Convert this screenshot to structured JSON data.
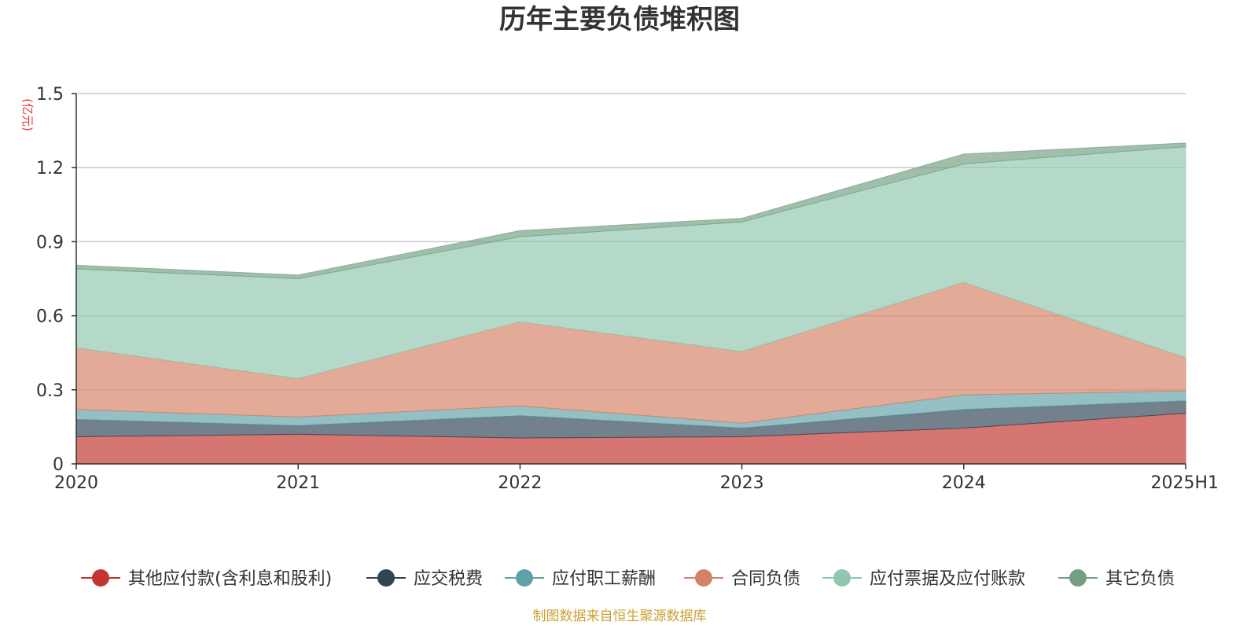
{
  "chart_data": {
    "type": "area",
    "stacked": true,
    "title": "历年主要负债堆积图",
    "y_unit": "(亿元)",
    "categories": [
      "2020",
      "2021",
      "2022",
      "2023",
      "2024",
      "2025H1"
    ],
    "ylim": [
      0,
      1.5
    ],
    "y_ticks": [
      "0",
      "0.3",
      "0.6",
      "0.9",
      "1.2",
      "1.5"
    ],
    "grid": true,
    "legend_position": "bottom",
    "series": [
      {
        "name": "其他应付款(含利息和股利)",
        "values": [
          0.11,
          0.12,
          0.105,
          0.11,
          0.145,
          0.205
        ],
        "color": "#c23531"
      },
      {
        "name": "应交税费",
        "values": [
          0.07,
          0.035,
          0.09,
          0.035,
          0.075,
          0.05
        ],
        "color": "#2f4554"
      },
      {
        "name": "应付职工薪酬",
        "values": [
          0.04,
          0.035,
          0.04,
          0.02,
          0.06,
          0.04
        ],
        "color": "#61a0a8"
      },
      {
        "name": "合同负债",
        "values": [
          0.25,
          0.155,
          0.34,
          0.29,
          0.455,
          0.135
        ],
        "color": "#d48265"
      },
      {
        "name": "应付票据及应付账款",
        "values": [
          0.32,
          0.405,
          0.345,
          0.525,
          0.48,
          0.855
        ],
        "color": "#91c7ae"
      },
      {
        "name": "其它负债",
        "values": [
          0.015,
          0.015,
          0.025,
          0.015,
          0.04,
          0.015
        ],
        "color": "#749f83"
      }
    ],
    "source_note": "制图数据来自恒生聚源数据库"
  }
}
